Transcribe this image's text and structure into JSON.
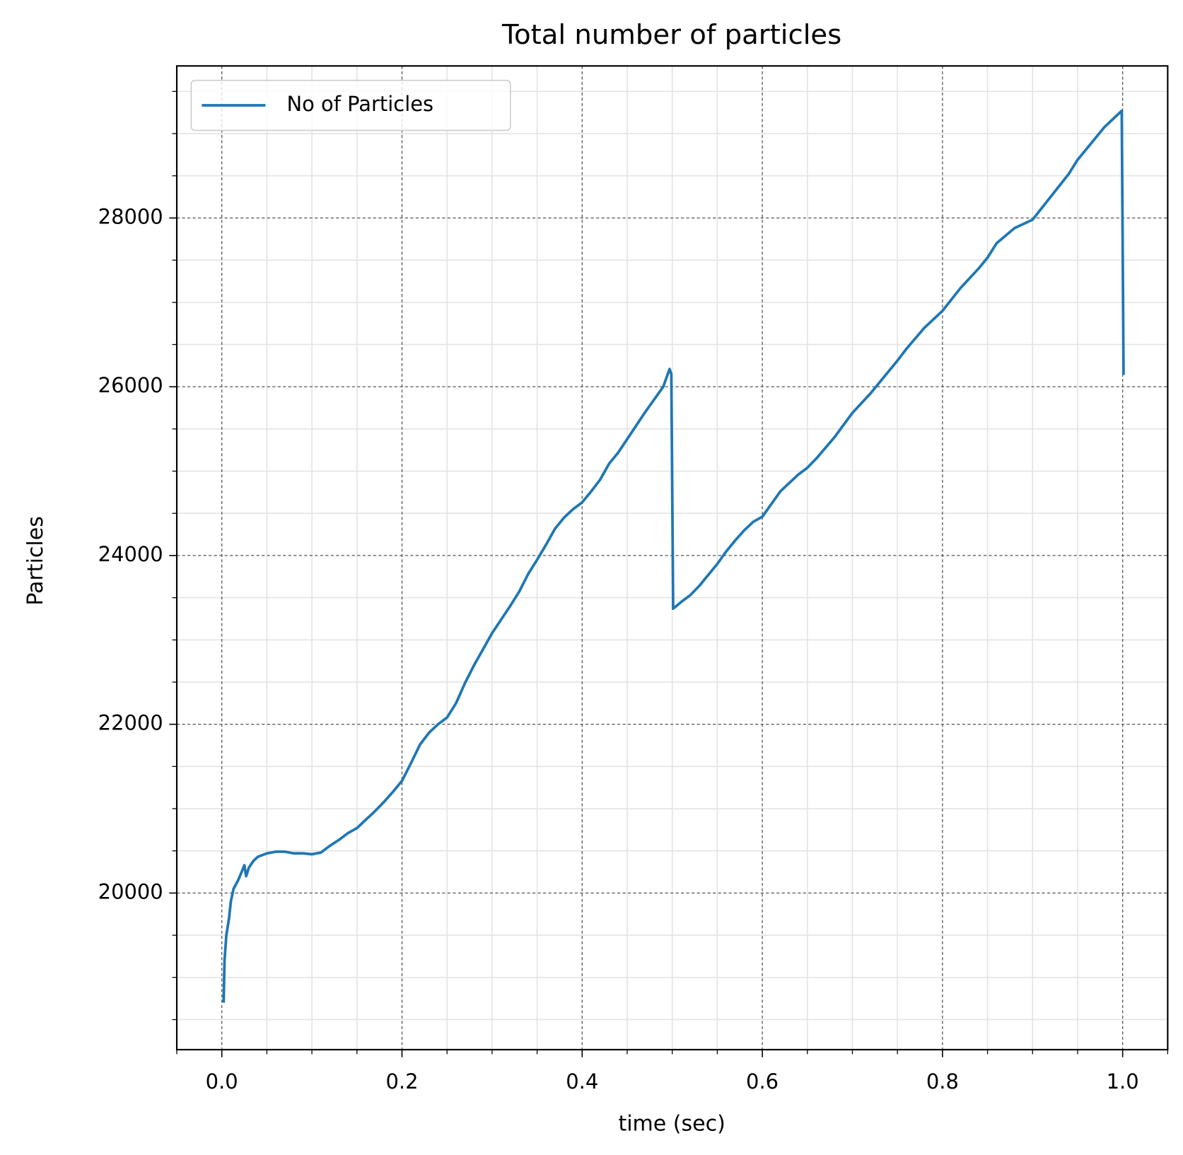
{
  "chart_data": {
    "type": "line",
    "title": "Total number of particles",
    "xlabel": "time (sec)",
    "ylabel": "Particles",
    "x": [
      0.002,
      0.003,
      0.005,
      0.008,
      0.01,
      0.013,
      0.018,
      0.022,
      0.025,
      0.027,
      0.03,
      0.035,
      0.04,
      0.05,
      0.06,
      0.07,
      0.08,
      0.09,
      0.1,
      0.11,
      0.12,
      0.13,
      0.14,
      0.15,
      0.16,
      0.17,
      0.18,
      0.19,
      0.2,
      0.21,
      0.22,
      0.23,
      0.24,
      0.25,
      0.26,
      0.27,
      0.28,
      0.29,
      0.3,
      0.31,
      0.32,
      0.33,
      0.34,
      0.35,
      0.36,
      0.37,
      0.38,
      0.39,
      0.4,
      0.41,
      0.42,
      0.43,
      0.44,
      0.45,
      0.46,
      0.47,
      0.48,
      0.49,
      0.497,
      0.499,
      0.501,
      0.51,
      0.52,
      0.53,
      0.54,
      0.55,
      0.56,
      0.57,
      0.58,
      0.59,
      0.6,
      0.62,
      0.64,
      0.65,
      0.66,
      0.68,
      0.7,
      0.72,
      0.74,
      0.75,
      0.76,
      0.78,
      0.8,
      0.82,
      0.84,
      0.85,
      0.86,
      0.88,
      0.9,
      0.92,
      0.94,
      0.95,
      0.96,
      0.98,
      0.999,
      1.001
    ],
    "series": [
      {
        "name": "No of Particles",
        "color": "#1f77b4",
        "values": [
          18700,
          19200,
          19500,
          19700,
          19900,
          20050,
          20150,
          20250,
          20330,
          20200,
          20300,
          20380,
          20430,
          20470,
          20490,
          20490,
          20470,
          20470,
          20460,
          20480,
          20560,
          20630,
          20710,
          20770,
          20870,
          20970,
          21080,
          21200,
          21330,
          21540,
          21760,
          21900,
          22000,
          22080,
          22250,
          22490,
          22700,
          22890,
          23080,
          23240,
          23400,
          23570,
          23780,
          23950,
          24130,
          24320,
          24450,
          24550,
          24630,
          24760,
          24900,
          25090,
          25220,
          25380,
          25540,
          25700,
          25850,
          26000,
          26210,
          26150,
          23370,
          23450,
          23530,
          23640,
          23770,
          23900,
          24050,
          24180,
          24300,
          24400,
          24460,
          24760,
          24960,
          25040,
          25150,
          25400,
          25690,
          25920,
          26180,
          26310,
          26450,
          26700,
          26900,
          27170,
          27400,
          27530,
          27700,
          27880,
          27980,
          28250,
          28520,
          28690,
          28820,
          29080,
          29270,
          26140
        ]
      }
    ],
    "xlim": [
      -0.05,
      1.05
    ],
    "ylim": [
      18144,
      29802
    ],
    "xticks": [
      {
        "value": 0,
        "label": "0.0"
      },
      0.2,
      0.4,
      0.6,
      0.8,
      {
        "value": 1,
        "label": "1.0"
      }
    ],
    "yticks": [
      20000,
      22000,
      24000,
      26000,
      28000
    ],
    "xminorticks": [
      -0.05,
      0.05,
      0.1,
      0.15,
      0.25,
      0.3,
      0.35,
      0.45,
      0.5,
      0.55,
      0.65,
      0.7,
      0.75,
      0.85,
      0.9,
      0.95,
      1.05
    ],
    "yminorticks": [
      18500,
      19000,
      19500,
      20500,
      21000,
      21500,
      22500,
      23000,
      23500,
      24500,
      25000,
      25500,
      26500,
      27000,
      27500,
      28500,
      29000,
      29500
    ],
    "grid": true,
    "legend": "upper left"
  }
}
